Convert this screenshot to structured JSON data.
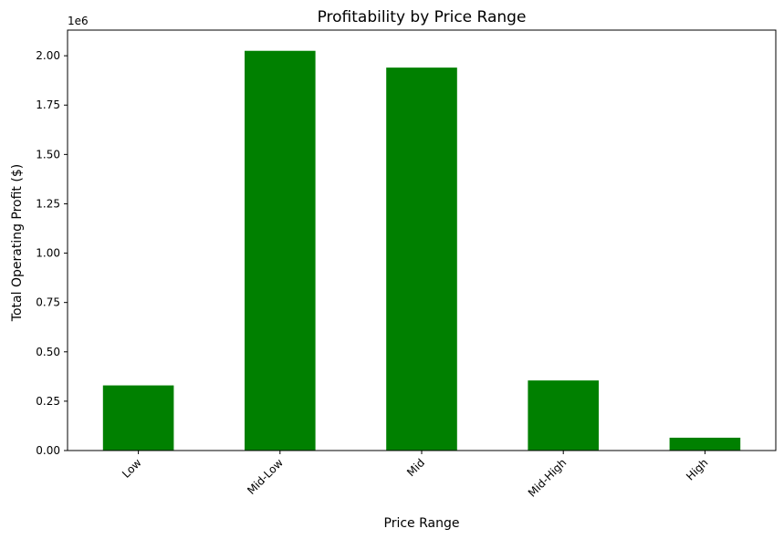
{
  "chart_data": {
    "type": "bar",
    "title": "Profitability by Price Range",
    "xlabel": "Price Range",
    "ylabel": "Total Operating Profit ($)",
    "y_offset_label": "1e6",
    "categories": [
      "Low",
      "Mid-Low",
      "Mid",
      "Mid-High",
      "High"
    ],
    "values": [
      330000,
      2025000,
      1940000,
      355000,
      65000
    ],
    "ylim": [
      0,
      2130000
    ],
    "yticks": [
      0,
      250000,
      500000,
      750000,
      1000000,
      1250000,
      1500000,
      1750000,
      2000000
    ],
    "ytick_labels": [
      "0.00",
      "0.25",
      "0.50",
      "0.75",
      "1.00",
      "1.25",
      "1.50",
      "1.75",
      "2.00"
    ],
    "bar_color": "#008000",
    "grid": false,
    "legend": "none"
  }
}
